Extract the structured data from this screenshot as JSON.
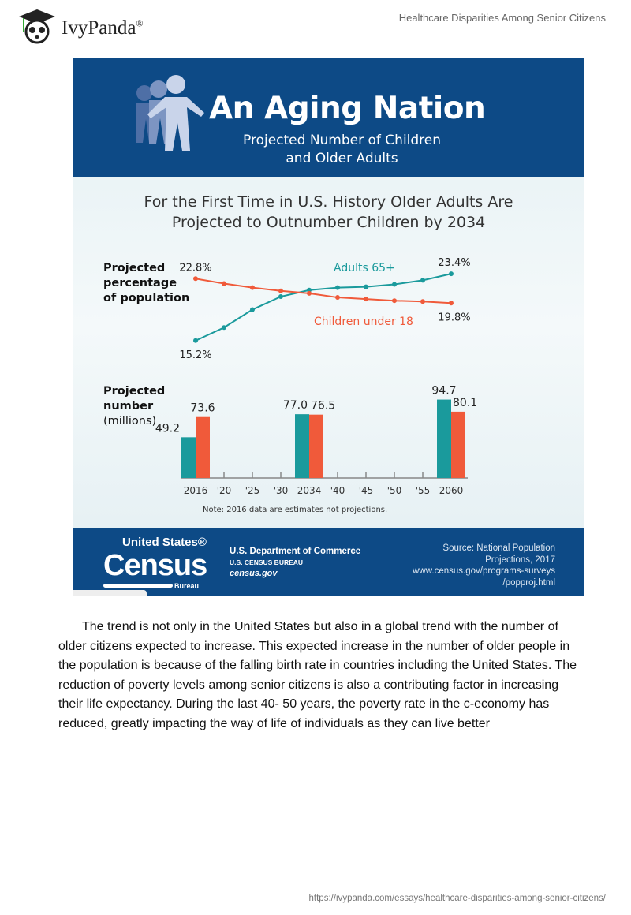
{
  "header": {
    "logo_text": "IvyPanda",
    "logo_mark": "®",
    "doc_title": "Healthcare Disparities Among Senior Citizens"
  },
  "infographic": {
    "title": "An Aging Nation",
    "subtitle_line1": "Projected Number of Children",
    "subtitle_line2": "and Older Adults",
    "headline_line1": "For the First Time in U.S. History Older Adults Are",
    "headline_line2": "Projected to Outnumber Children by 2034",
    "note": "Note: 2016 data are estimates not projections.",
    "footer": {
      "census_line1": "United States®",
      "census_line2": "Census",
      "census_line3": "Bureau",
      "dept": "U.S. Department of Commerce",
      "bureau": "U.S. CENSUS BUREAU",
      "site": "census.gov",
      "source": [
        "Source: National Population",
        "Projections, 2017",
        "www.census.gov/programs-surveys",
        "/popproj.html"
      ]
    }
  },
  "chart_data": [
    {
      "type": "line",
      "ylabel": [
        "Projected",
        "percentage",
        "of population"
      ],
      "x": [
        "2016",
        "'20",
        "'25",
        "'30",
        "2034",
        "'40",
        "'45",
        "'50",
        "'55",
        "2060"
      ],
      "series": [
        {
          "name": "Adults 65+",
          "color": "#1a9a9c",
          "values": [
            15.2,
            16.8,
            19.0,
            20.6,
            21.4,
            21.7,
            21.8,
            22.1,
            22.6,
            23.4
          ],
          "labels": {
            "first": "15.2%",
            "last": "23.4%"
          }
        },
        {
          "name": "Children under 18",
          "color": "#f05a3a",
          "values": [
            22.8,
            22.2,
            21.7,
            21.3,
            21.0,
            20.5,
            20.3,
            20.1,
            20.0,
            19.8
          ],
          "labels": {
            "first": "22.8%",
            "last": "19.8%"
          }
        }
      ]
    },
    {
      "type": "bar",
      "ylabel": [
        "Projected",
        "number",
        "(millions)"
      ],
      "tick_labels": [
        "2016",
        "'20",
        "'25",
        "'30",
        "2034",
        "'40",
        "'45",
        "'50",
        "'55",
        "2060"
      ],
      "categories": [
        "2016",
        "2034",
        "2060"
      ],
      "series": [
        {
          "color": "#1a9a9c",
          "values": [
            49.2,
            77.0,
            94.7
          ]
        },
        {
          "color": "#f05a3a",
          "values": [
            73.6,
            76.5,
            80.1
          ]
        }
      ]
    }
  ],
  "body": {
    "paragraph": "The trend is not only in the United States but also in a global trend with the number of older citizens expected to increase. This expected increase in the number of older people in the population is because of the falling birth rate in countries including the United States. The reduction of poverty levels among senior citizens is also a contributing factor in increasing their life expectancy. During the last 40- 50 years, the poverty rate in the c-economy has reduced, greatly impacting the way of life of individuals as they can live better"
  },
  "footer": {
    "url": "https://ivypanda.com/essays/healthcare-disparities-among-senior-citizens/"
  }
}
